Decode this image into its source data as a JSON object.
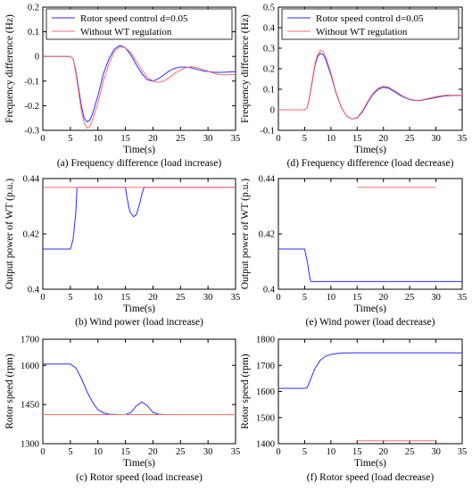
{
  "figure": {
    "legend": {
      "series_a": "Rotor speed control d=0.05",
      "series_b": "Without WT regulation"
    }
  },
  "colors": {
    "series_a": "#2b2bff",
    "series_b": "#ff6b6b"
  },
  "chart_data": [
    {
      "id": "a",
      "type": "line",
      "caption": "(a) Frequency difference (load increase)",
      "xlabel": "Time(s)",
      "ylabel": "Frequency difference (Hz)",
      "xlim": [
        0,
        35
      ],
      "ylim": [
        -0.3,
        0.2
      ],
      "xticks": [
        0,
        5,
        10,
        15,
        20,
        25,
        30,
        35
      ],
      "yticks": [
        0.2,
        0.1,
        0,
        -0.1,
        -0.2,
        -0.3
      ],
      "ytick_labels": [
        "0.2",
        "0.1",
        "0",
        "-0.1",
        "-0.2",
        "-0.3"
      ],
      "legend": "top-right",
      "series": [
        {
          "key": "series_a",
          "x": [
            0,
            5,
            5.5,
            6,
            7,
            7.5,
            8,
            8.5,
            9,
            10,
            11,
            12,
            13,
            14,
            15,
            16,
            17,
            18,
            19,
            20,
            21,
            22,
            23,
            24,
            25,
            26,
            27,
            28,
            29,
            30,
            31,
            32,
            33,
            34,
            35
          ],
          "y": [
            0,
            0,
            -0.01,
            -0.06,
            -0.2,
            -0.25,
            -0.265,
            -0.26,
            -0.235,
            -0.16,
            -0.07,
            -0.01,
            0.03,
            0.045,
            0.035,
            0.005,
            -0.035,
            -0.07,
            -0.095,
            -0.1,
            -0.09,
            -0.075,
            -0.058,
            -0.048,
            -0.043,
            -0.043,
            -0.047,
            -0.052,
            -0.058,
            -0.062,
            -0.064,
            -0.065,
            -0.064,
            -0.063,
            -0.062
          ]
        },
        {
          "key": "series_b",
          "x": [
            0,
            5,
            5.5,
            6,
            7,
            7.5,
            8,
            8.5,
            9,
            10,
            11,
            12,
            13,
            14,
            15,
            16,
            17,
            18,
            19,
            20,
            21,
            22,
            23,
            24,
            25,
            26,
            27,
            28,
            29,
            30,
            31,
            32,
            33,
            34,
            35
          ],
          "y": [
            0,
            0,
            -0.01,
            -0.07,
            -0.22,
            -0.27,
            -0.29,
            -0.285,
            -0.26,
            -0.19,
            -0.1,
            -0.03,
            0.02,
            0.04,
            0.035,
            0.015,
            -0.02,
            -0.055,
            -0.085,
            -0.1,
            -0.105,
            -0.1,
            -0.085,
            -0.068,
            -0.055,
            -0.045,
            -0.042,
            -0.045,
            -0.052,
            -0.06,
            -0.068,
            -0.073,
            -0.075,
            -0.074,
            -0.072
          ]
        }
      ]
    },
    {
      "id": "d",
      "type": "line",
      "caption": "(d) Frequency difference (load decrease)",
      "xlabel": "Time(s)",
      "ylabel": "Frequency difference (Hz)",
      "xlim": [
        0,
        35
      ],
      "ylim": [
        -0.1,
        0.5
      ],
      "xticks": [
        0,
        5,
        10,
        15,
        20,
        25,
        30,
        35
      ],
      "yticks": [
        0.5,
        0.4,
        0.3,
        0.2,
        0.1,
        0,
        -0.1
      ],
      "ytick_labels": [
        "0.5",
        "0.4",
        "0.3",
        "0.2",
        "0.1",
        "0",
        "-0.1"
      ],
      "legend": "top-right",
      "series": [
        {
          "key": "series_a",
          "x": [
            0,
            5,
            5.5,
            6,
            7,
            7.5,
            8,
            8.5,
            9,
            10,
            11,
            12,
            13,
            14,
            15,
            16,
            17,
            18,
            19,
            20,
            21,
            22,
            23,
            24,
            25,
            26,
            27,
            28,
            29,
            30,
            31,
            32,
            33,
            34,
            35
          ],
          "y": [
            0,
            0,
            0.01,
            0.07,
            0.22,
            0.26,
            0.275,
            0.27,
            0.245,
            0.17,
            0.08,
            0.01,
            -0.03,
            -0.045,
            -0.04,
            -0.01,
            0.035,
            0.075,
            0.1,
            0.11,
            0.105,
            0.09,
            0.073,
            0.06,
            0.05,
            0.045,
            0.045,
            0.05,
            0.055,
            0.06,
            0.065,
            0.068,
            0.07,
            0.07,
            0.07
          ]
        },
        {
          "key": "series_b",
          "x": [
            0,
            5,
            5.5,
            6,
            7,
            7.5,
            8,
            8.5,
            9,
            10,
            11,
            12,
            13,
            14,
            15,
            16,
            17,
            18,
            19,
            20,
            21,
            22,
            23,
            24,
            25,
            26,
            27,
            28,
            29,
            30,
            31,
            32,
            33,
            34,
            35
          ],
          "y": [
            0,
            0,
            0.01,
            0.075,
            0.23,
            0.27,
            0.29,
            0.285,
            0.26,
            0.18,
            0.085,
            0.012,
            -0.03,
            -0.045,
            -0.038,
            -0.005,
            0.04,
            0.08,
            0.105,
            0.115,
            0.11,
            0.095,
            0.078,
            0.063,
            0.052,
            0.047,
            0.047,
            0.052,
            0.058,
            0.064,
            0.068,
            0.071,
            0.072,
            0.072,
            0.072
          ]
        }
      ]
    },
    {
      "id": "b",
      "type": "line",
      "caption": "(b) Wind power (load increase)",
      "xlabel": "Time(s)",
      "ylabel": "Output power of WT (p.u.)",
      "xlim": [
        0,
        35
      ],
      "ylim": [
        0.4,
        0.44
      ],
      "xticks": [
        0,
        5,
        10,
        15,
        20,
        25,
        30,
        35
      ],
      "yticks": [
        0.44,
        0.42,
        0.4
      ],
      "ytick_labels": [
        "0.44",
        "0.42",
        "0.4"
      ],
      "series": [
        {
          "key": "series_a",
          "x": [
            0,
            5,
            5.5,
            6,
            6.2,
            15,
            15.3,
            15.8,
            16.5,
            17,
            17.6,
            18,
            18.4,
            35
          ],
          "y": [
            0.4145,
            0.4145,
            0.418,
            0.428,
            0.4368,
            0.4368,
            0.433,
            0.428,
            0.4262,
            0.427,
            0.431,
            0.4345,
            0.4368,
            0.4368
          ]
        },
        {
          "key": "series_b",
          "x": [
            0,
            35
          ],
          "y": [
            0.4368,
            0.4368
          ]
        }
      ]
    },
    {
      "id": "e",
      "type": "line",
      "caption": "(e) Wind power (load decrease)",
      "xlabel": "Time(s)",
      "ylabel": "Output power of WT (p.u.)",
      "xlim": [
        0,
        35
      ],
      "ylim": [
        0.4,
        0.44
      ],
      "xticks": [
        0,
        5,
        10,
        15,
        20,
        25,
        30,
        35
      ],
      "yticks": [
        0.44,
        0.42,
        0.4
      ],
      "ytick_labels": [
        "0.44",
        "0.42",
        "0.4"
      ],
      "series": [
        {
          "key": "series_a",
          "x": [
            0,
            5,
            5.5,
            6,
            6.2,
            35
          ],
          "y": [
            0.4145,
            0.4145,
            0.41,
            0.404,
            0.4028,
            0.4028
          ]
        },
        {
          "key": "series_b",
          "x": [
            15,
            30
          ],
          "y": [
            0.4368,
            0.4368
          ]
        }
      ]
    },
    {
      "id": "c",
      "type": "line",
      "caption": "(c) Rotor speed (load increase)",
      "xlabel": "Time(s)",
      "ylabel": "Rotor speed (rpm)",
      "xlim": [
        0,
        35
      ],
      "ylim": [
        1300,
        1700
      ],
      "xticks": [
        0,
        5,
        10,
        15,
        20,
        25,
        30,
        35
      ],
      "yticks": [
        1700,
        1600,
        1450,
        1300
      ],
      "ytick_labels": [
        "1700",
        "1600",
        "1450",
        "1300"
      ],
      "series": [
        {
          "key": "series_a",
          "x": [
            0,
            5,
            6,
            7,
            8,
            9,
            10,
            11,
            12,
            13,
            14,
            15,
            16,
            17,
            18,
            19,
            20,
            21,
            22,
            23.5
          ],
          "y": [
            1605,
            1605,
            1590,
            1550,
            1500,
            1460,
            1430,
            1418,
            1413,
            1412,
            1411,
            1411,
            1420,
            1445,
            1460,
            1445,
            1420,
            1413,
            1411,
            1411
          ]
        },
        {
          "key": "series_b",
          "x": [
            0,
            35
          ],
          "y": [
            1411,
            1411
          ]
        }
      ]
    },
    {
      "id": "f",
      "type": "line",
      "caption": "(f) Rotor speed (load decrease)",
      "xlabel": "Time(s)",
      "ylabel": "Rotor speed (rpm)",
      "xlim": [
        0,
        35
      ],
      "ylim": [
        1400,
        1800
      ],
      "xticks": [
        0,
        5,
        10,
        15,
        20,
        25,
        30,
        35
      ],
      "yticks": [
        1800,
        1700,
        1600,
        1500,
        1400
      ],
      "ytick_labels": [
        "1800",
        "1700",
        "1600",
        "1500",
        "1400"
      ],
      "series": [
        {
          "key": "series_a",
          "x": [
            0,
            5,
            5.5,
            6,
            7,
            8,
            9,
            10,
            11,
            12,
            14,
            16,
            20,
            25,
            30,
            35
          ],
          "y": [
            1612,
            1612,
            1615,
            1640,
            1690,
            1720,
            1735,
            1742,
            1745,
            1747,
            1748,
            1748,
            1748,
            1748,
            1748,
            1748
          ]
        },
        {
          "key": "series_b",
          "x": [
            15,
            30
          ],
          "y": [
            1411,
            1411
          ]
        }
      ]
    }
  ]
}
